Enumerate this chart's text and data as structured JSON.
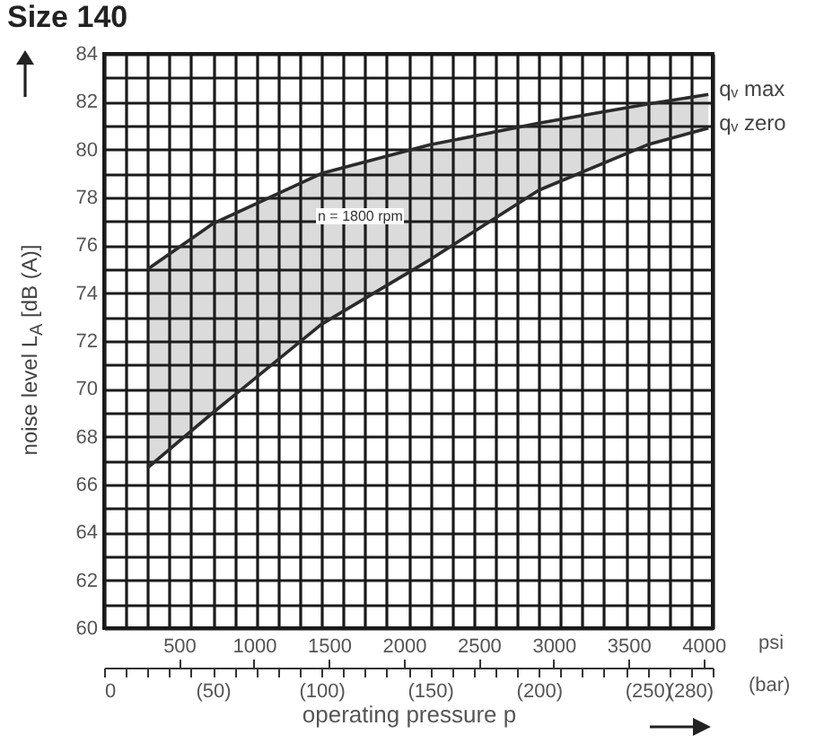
{
  "chart_data": {
    "type": "line",
    "title": "Size 140",
    "xlabel": "operating pressure p",
    "ylabel": "noise level L$_{A}$ [dB (A)]",
    "x2label": "psi",
    "x": [
      20,
      50,
      100,
      150,
      200,
      250,
      278
    ],
    "series": [
      {
        "name": "qᵥ max",
        "color": "#2b2b2b",
        "values": [
          75.0,
          76.9,
          79.0,
          80.2,
          81.1,
          81.9,
          82.3
        ],
        "lower": [
          66.7,
          69.0,
          72.7,
          75.4,
          78.3,
          80.2,
          80.9
        ],
        "upper": [
          75.0,
          76.9,
          79.0,
          80.2,
          81.1,
          81.9,
          82.3
        ]
      },
      {
        "name": "qᵥ zero",
        "color": "#2b2b2b",
        "values": [
          66.7,
          69.0,
          72.7,
          75.4,
          78.3,
          80.2,
          80.9
        ]
      }
    ],
    "xlim": [
      0,
      280
    ],
    "xticks": [
      0,
      {
        "value": 10,
        "label": null
      },
      {
        "value": 20,
        "label": null
      },
      {
        "value": 30,
        "label": null
      },
      {
        "value": 40,
        "label": null
      },
      {
        "value": 50,
        "label": "(50)"
      },
      {
        "value": 60,
        "label": null
      },
      {
        "value": 70,
        "label": null
      },
      {
        "value": 80,
        "label": null
      },
      {
        "value": 90,
        "label": null
      },
      {
        "value": 100,
        "label": "(100)"
      },
      {
        "value": 110,
        "label": null
      },
      {
        "value": 120,
        "label": null
      },
      {
        "value": 130,
        "label": null
      },
      {
        "value": 140,
        "label": null
      },
      {
        "value": 150,
        "label": "(150)"
      },
      {
        "value": 160,
        "label": null
      },
      {
        "value": 170,
        "label": null
      },
      {
        "value": 180,
        "label": null
      },
      {
        "value": 190,
        "label": null
      },
      {
        "value": 200,
        "label": "(200)"
      },
      {
        "value": 210,
        "label": null
      },
      {
        "value": 220,
        "label": null
      },
      {
        "value": 230,
        "label": null
      },
      {
        "value": 240,
        "label": null
      },
      {
        "value": 250,
        "label": "(250)"
      },
      {
        "value": 260,
        "label": null
      },
      {
        "value": 270,
        "label": null
      },
      {
        "value": 280,
        "label": "(280)"
      }
    ],
    "x2lim": [
      0,
      4061
    ],
    "x2ticks": [
      500,
      1000,
      1500,
      2000,
      2500,
      3000,
      3500,
      4000
    ],
    "ylim": [
      60,
      84
    ],
    "yticks": [
      60,
      {
        "value": 61,
        "label": null
      },
      62,
      {
        "value": 63,
        "label": null
      },
      64,
      {
        "value": 65,
        "label": null
      },
      66,
      {
        "value": 67,
        "label": null
      },
      68,
      {
        "value": 69,
        "label": null
      },
      70,
      {
        "value": 71,
        "label": null
      },
      72,
      {
        "value": 73,
        "label": null
      },
      74,
      {
        "value": 75,
        "label": null
      },
      76,
      {
        "value": 77,
        "label": null
      },
      78,
      {
        "value": 79,
        "label": null
      },
      80,
      {
        "value": 81,
        "label": null
      },
      82,
      {
        "value": 83,
        "label": null
      },
      84
    ],
    "grid": true,
    "line_style": "solid",
    "marker": "none",
    "legend": false,
    "annotations": [
      "n = 1800 rpm",
      "(bar)"
    ]
  }
}
